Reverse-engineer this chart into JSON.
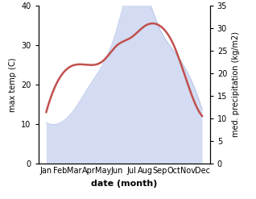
{
  "months": [
    "Jan",
    "Feb",
    "Mar",
    "Apr",
    "May",
    "Jun",
    "Jul",
    "Aug",
    "Sep",
    "Oct",
    "Nov",
    "Dec"
  ],
  "temperature": [
    13,
    22,
    25,
    25,
    26,
    30,
    32,
    35,
    35,
    30,
    20,
    12
  ],
  "precipitation": [
    9,
    9,
    12,
    17,
    22,
    30,
    40,
    38,
    30,
    25,
    20,
    12
  ],
  "temp_color": "#c0504d",
  "precip_fill_color": "#b0c0e8",
  "precip_fill_alpha": 0.55,
  "precip_line_color": "#b0c0e8",
  "ylim_left": [
    0,
    40
  ],
  "ylim_right": [
    0,
    35
  ],
  "yticks_left": [
    0,
    10,
    20,
    30,
    40
  ],
  "yticks_right": [
    0,
    5,
    10,
    15,
    20,
    25,
    30,
    35
  ],
  "xlabel": "date (month)",
  "ylabel_left": "max temp (C)",
  "ylabel_right": "med. precipitation (kg/m2)",
  "temp_linewidth": 1.8,
  "xlabel_fontsize": 8,
  "ylabel_fontsize": 7,
  "tick_fontsize": 7,
  "label_fontsize": 7
}
